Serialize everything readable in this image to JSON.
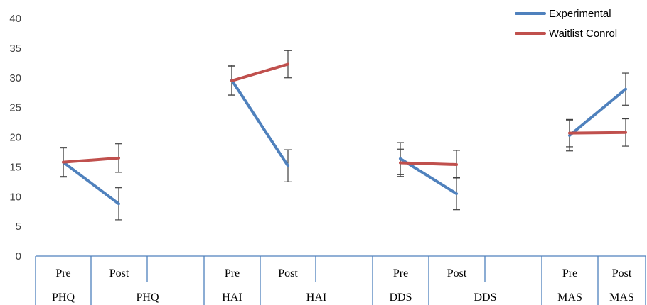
{
  "chart_data": {
    "type": "line",
    "ylim": [
      0,
      40
    ],
    "yticks": [
      "0",
      "5",
      "10",
      "15",
      "20",
      "25",
      "30",
      "35",
      "40"
    ],
    "grid": false,
    "legend_position": "top-right",
    "x_axis_rows": {
      "time_labels": [
        "Pre",
        "Post",
        "",
        "Pre",
        "Post",
        "",
        "Pre",
        "Post",
        "",
        "Pre",
        "Post"
      ],
      "measure_labels": [
        "PHQ",
        "PHQ",
        "HAI",
        "HAI",
        "DDS",
        "DDS",
        "MAS",
        "MAS"
      ]
    },
    "series": [
      {
        "name": "Experimental",
        "color": "#4f81bd",
        "segments": [
          {
            "measure": "PHQ",
            "values": [
              15.8,
              8.8
            ],
            "errors": [
              2.5,
              2.7
            ]
          },
          {
            "measure": "HAI",
            "values": [
              29.6,
              15.2
            ],
            "errors": [
              2.5,
              2.7
            ]
          },
          {
            "measure": "DDS",
            "values": [
              16.4,
              10.5
            ],
            "errors": [
              2.7,
              2.7
            ]
          },
          {
            "measure": "MAS",
            "values": [
              20.3,
              28.1
            ],
            "errors": [
              2.6,
              2.7
            ]
          }
        ]
      },
      {
        "name": "Waitlist Conrol",
        "color": "#c0504d",
        "segments": [
          {
            "measure": "PHQ",
            "values": [
              15.8,
              16.5
            ],
            "errors": [
              2.4,
              2.4
            ]
          },
          {
            "measure": "HAI",
            "values": [
              29.5,
              32.3
            ],
            "errors": [
              2.4,
              2.3
            ]
          },
          {
            "measure": "DDS",
            "values": [
              15.7,
              15.4
            ],
            "errors": [
              2.3,
              2.4
            ]
          },
          {
            "measure": "MAS",
            "values": [
              20.7,
              20.8
            ],
            "errors": [
              2.3,
              2.3
            ]
          }
        ]
      }
    ]
  }
}
